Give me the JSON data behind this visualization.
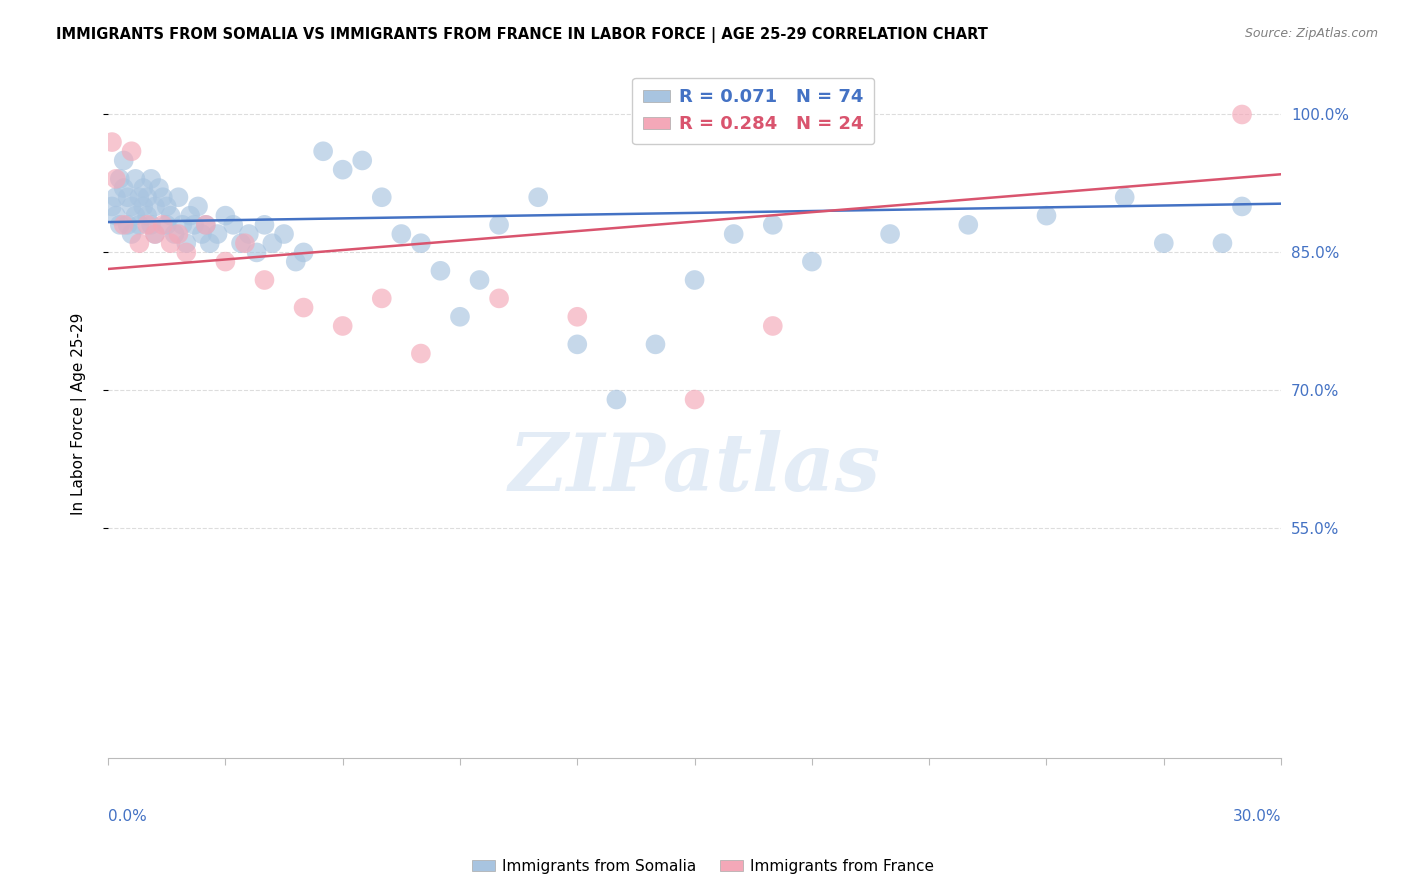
{
  "title": "IMMIGRANTS FROM SOMALIA VS IMMIGRANTS FROM FRANCE IN LABOR FORCE | AGE 25-29 CORRELATION CHART",
  "source": "Source: ZipAtlas.com",
  "ylabel": "In Labor Force | Age 25-29",
  "ytick_values": [
    1.0,
    0.85,
    0.7,
    0.55
  ],
  "xlim": [
    0.0,
    0.3
  ],
  "ylim": [
    0.3,
    1.05
  ],
  "somalia_color": "#a8c4e0",
  "france_color": "#f4a8b8",
  "somalia_line_color": "#4472c4",
  "france_line_color": "#d9546e",
  "R_somalia": 0.071,
  "N_somalia": 74,
  "R_france": 0.284,
  "N_france": 24,
  "watermark_text": "ZIPatlas",
  "background_color": "#ffffff",
  "grid_color": "#dddddd",
  "somalia_x": [
    0.001,
    0.002,
    0.002,
    0.003,
    0.003,
    0.004,
    0.004,
    0.005,
    0.005,
    0.006,
    0.006,
    0.007,
    0.007,
    0.008,
    0.008,
    0.009,
    0.009,
    0.01,
    0.01,
    0.011,
    0.011,
    0.012,
    0.012,
    0.013,
    0.014,
    0.015,
    0.015,
    0.016,
    0.017,
    0.018,
    0.019,
    0.02,
    0.021,
    0.022,
    0.023,
    0.024,
    0.025,
    0.026,
    0.028,
    0.03,
    0.032,
    0.034,
    0.036,
    0.038,
    0.04,
    0.042,
    0.045,
    0.048,
    0.05,
    0.055,
    0.06,
    0.065,
    0.07,
    0.075,
    0.08,
    0.085,
    0.09,
    0.095,
    0.1,
    0.11,
    0.12,
    0.13,
    0.14,
    0.15,
    0.16,
    0.17,
    0.18,
    0.2,
    0.22,
    0.24,
    0.26,
    0.27,
    0.285,
    0.29
  ],
  "somalia_y": [
    0.9,
    0.89,
    0.91,
    0.88,
    0.93,
    0.92,
    0.95,
    0.88,
    0.91,
    0.87,
    0.9,
    0.89,
    0.93,
    0.91,
    0.88,
    0.9,
    0.92,
    0.89,
    0.91,
    0.88,
    0.93,
    0.9,
    0.87,
    0.92,
    0.91,
    0.88,
    0.9,
    0.89,
    0.87,
    0.91,
    0.88,
    0.86,
    0.89,
    0.88,
    0.9,
    0.87,
    0.88,
    0.86,
    0.87,
    0.89,
    0.88,
    0.86,
    0.87,
    0.85,
    0.88,
    0.86,
    0.87,
    0.84,
    0.85,
    0.96,
    0.94,
    0.95,
    0.91,
    0.87,
    0.86,
    0.83,
    0.78,
    0.82,
    0.88,
    0.91,
    0.75,
    0.69,
    0.75,
    0.82,
    0.87,
    0.88,
    0.84,
    0.87,
    0.88,
    0.89,
    0.91,
    0.86,
    0.86,
    0.9
  ],
  "france_x": [
    0.001,
    0.002,
    0.004,
    0.006,
    0.008,
    0.01,
    0.012,
    0.014,
    0.016,
    0.018,
    0.02,
    0.025,
    0.03,
    0.035,
    0.04,
    0.05,
    0.06,
    0.07,
    0.08,
    0.1,
    0.12,
    0.15,
    0.17,
    0.29
  ],
  "france_y": [
    0.97,
    0.93,
    0.88,
    0.96,
    0.86,
    0.88,
    0.87,
    0.88,
    0.86,
    0.87,
    0.85,
    0.88,
    0.84,
    0.86,
    0.82,
    0.79,
    0.77,
    0.8,
    0.74,
    0.8,
    0.78,
    0.69,
    0.77,
    1.0
  ],
  "france_line_y0": 0.832,
  "france_line_y1": 0.935,
  "somalia_line_y0": 0.883,
  "somalia_line_y1": 0.903
}
